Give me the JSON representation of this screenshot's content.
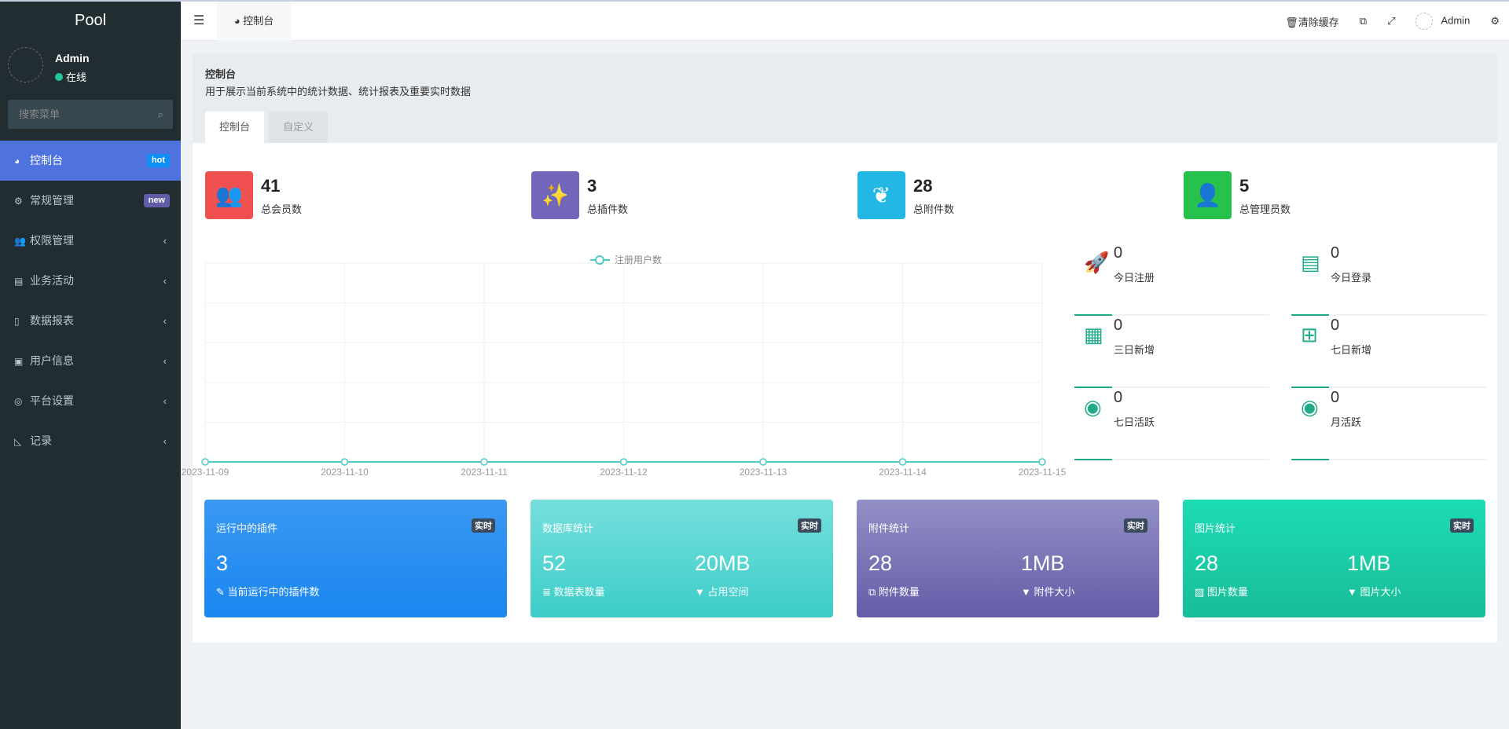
{
  "sidebar": {
    "logo": "Pool",
    "user": "Admin",
    "status": "在线",
    "search_placeholder": "搜索菜单",
    "items": [
      {
        "label": "控制台",
        "icon": "dashboard-icon",
        "glyph": "◕",
        "badge": "hot",
        "badge_color": "#0d8ff5",
        "active": true
      },
      {
        "label": "常规管理",
        "icon": "cogs-icon",
        "glyph": "⚙",
        "badge": "new",
        "badge_color": "#605ca8"
      },
      {
        "label": "权限管理",
        "icon": "users-icon",
        "glyph": "👥"
      },
      {
        "label": "业务活动",
        "icon": "newspaper-icon",
        "glyph": "▤"
      },
      {
        "label": "数据报表",
        "icon": "file-icon",
        "glyph": "▯"
      },
      {
        "label": "用户信息",
        "icon": "address-book-icon",
        "glyph": "▣"
      },
      {
        "label": "平台设置",
        "icon": "bullseye-icon",
        "glyph": "◎"
      },
      {
        "label": "记录",
        "icon": "area-chart-icon",
        "glyph": "◺"
      }
    ]
  },
  "header": {
    "tab": "控制台",
    "clear_cache": "清除缓存",
    "user": "Admin"
  },
  "panel": {
    "title": "控制台",
    "subtitle": "用于展示当前系统中的统计数据、统计报表及重要实时数据",
    "tabs": [
      "控制台",
      "自定义"
    ]
  },
  "stats": [
    {
      "value": "41",
      "label": "总会员数",
      "color": "#f05050",
      "icon": "users-icon"
    },
    {
      "value": "3",
      "label": "总插件数",
      "color": "#7266ba",
      "icon": "magic-wand-icon"
    },
    {
      "value": "28",
      "label": "总附件数",
      "color": "#23b7e5",
      "icon": "leaf-icon"
    },
    {
      "value": "5",
      "label": "总管理员数",
      "color": "#27c24c",
      "icon": "user-icon"
    }
  ],
  "mini_stats": [
    {
      "value": "0",
      "label": "今日注册",
      "icon": "rocket-icon",
      "glyph": "🚀"
    },
    {
      "value": "0",
      "label": "今日登录",
      "icon": "id-card-icon",
      "glyph": "▤"
    },
    {
      "value": "0",
      "label": "三日新增",
      "icon": "calendar-icon",
      "glyph": "▦"
    },
    {
      "value": "0",
      "label": "七日新增",
      "icon": "calendar-plus-icon",
      "glyph": "⊞"
    },
    {
      "value": "0",
      "label": "七日活跃",
      "icon": "user-circle-icon",
      "glyph": "◉"
    },
    {
      "value": "0",
      "label": "月活跃",
      "icon": "user-circle-icon",
      "glyph": "◉"
    }
  ],
  "cards": [
    {
      "title": "运行中的插件",
      "tag": "实时",
      "v1": "3",
      "l1": "当前运行中的插件数",
      "i1": "✎",
      "grad": [
        "#3a98f3",
        "#1a86ef"
      ]
    },
    {
      "title": "数据库统计",
      "tag": "实时",
      "v1": "52",
      "l1": "数据表数量",
      "i1": "≣",
      "v2": "20MB",
      "l2": "占用空间",
      "i2": "▼",
      "grad": [
        "#76dfdc",
        "#3ccdc9"
      ]
    },
    {
      "title": "附件统计",
      "tag": "实时",
      "v1": "28",
      "l1": "附件数量",
      "i1": "⧉",
      "v2": "1MB",
      "l2": "附件大小",
      "i2": "▼",
      "grad": [
        "#9390c6",
        "#655ca8"
      ]
    },
    {
      "title": "图片统计",
      "tag": "实时",
      "v1": "28",
      "l1": "图片数量",
      "i1": "▨",
      "v2": "1MB",
      "l2": "图片大小",
      "i2": "▼",
      "grad": [
        "#1cdcb4",
        "#18bd98"
      ]
    }
  ],
  "chart_data": {
    "type": "line",
    "legend": [
      "注册用户数"
    ],
    "legend_placement": "top-center",
    "x": [
      "2023-11-09",
      "2023-11-10",
      "2023-11-11",
      "2023-11-12",
      "2023-11-13",
      "2023-11-14",
      "2023-11-15"
    ],
    "series": [
      {
        "name": "注册用户数",
        "values": [
          0,
          0,
          0,
          0,
          0,
          0,
          0
        ]
      }
    ],
    "color": "#4ecbc4",
    "grid": true
  }
}
